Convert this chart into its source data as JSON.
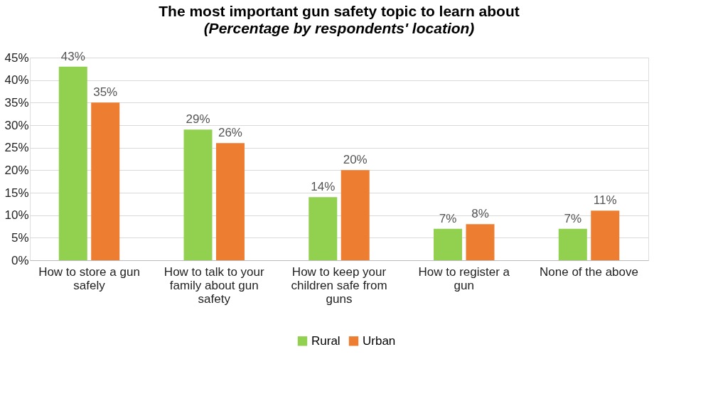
{
  "chart_data": {
    "type": "bar",
    "title": "The most important gun safety topic to learn about",
    "subtitle": "(Percentage by respondents' location)",
    "categories": [
      "How to store a gun safely",
      "How to talk to your family about gun safety",
      "How to keep your children safe from guns",
      "How to register a gun",
      "None of the above"
    ],
    "series": [
      {
        "name": "Rural",
        "color": "#92d050",
        "values": [
          43,
          29,
          14,
          7,
          7
        ],
        "value_labels": [
          "43%",
          "29%",
          "14%",
          "7%",
          "7%"
        ]
      },
      {
        "name": "Urban",
        "color": "#ed7d31",
        "values": [
          35,
          26,
          20,
          8,
          11
        ],
        "value_labels": [
          "35%",
          "26%",
          "20%",
          "8%",
          "11%"
        ]
      }
    ],
    "ylim": [
      0,
      45
    ],
    "yticks": [
      {
        "value": 0,
        "label": "0%"
      },
      {
        "value": 5,
        "label": "5%"
      },
      {
        "value": 10,
        "label": "10%"
      },
      {
        "value": 15,
        "label": "15%"
      },
      {
        "value": 20,
        "label": "20%"
      },
      {
        "value": 25,
        "label": "25%"
      },
      {
        "value": 30,
        "label": "30%"
      },
      {
        "value": 35,
        "label": "35%"
      },
      {
        "value": 40,
        "label": "40%"
      },
      {
        "value": 45,
        "label": "45%"
      }
    ],
    "grid": "y",
    "legend": "bottom"
  }
}
